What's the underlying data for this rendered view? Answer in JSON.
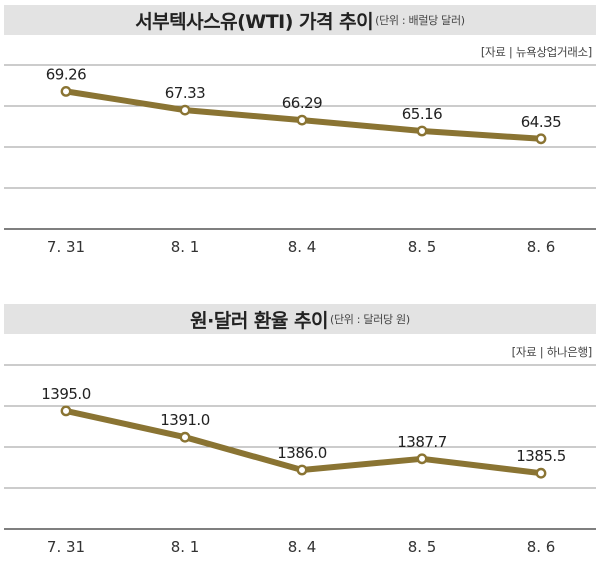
{
  "chart_data": [
    {
      "type": "line",
      "title": "서부텍사스유(WTI) 가격 추이",
      "unit_note": "(단위 : 배럴당 달러)",
      "source": "[자료 | 뉴욕상업거래소]",
      "categories": [
        "7. 31",
        "8. 1",
        "8. 4",
        "8. 5",
        "8. 6"
      ],
      "values": [
        69.26,
        67.33,
        66.29,
        65.16,
        64.35
      ],
      "value_labels": [
        "69.26",
        "67.33",
        "66.29",
        "65.16",
        "64.35"
      ],
      "ylim": [
        55,
        72
      ],
      "grid": true,
      "line_color": "#8a7433",
      "marker_fill": "#ffffff"
    },
    {
      "type": "line",
      "title": "원·달러 환율 추이",
      "unit_note": "(단위 : 달러당 원)",
      "source": "[자료 | 하나은행]",
      "categories": [
        "7. 31",
        "8. 1",
        "8. 4",
        "8. 5",
        "8. 6"
      ],
      "values": [
        1395.0,
        1391.0,
        1386.0,
        1387.7,
        1385.5
      ],
      "value_labels": [
        "1395.0",
        "1391.0",
        "1386.0",
        "1387.7",
        "1385.5"
      ],
      "ylim": [
        1377,
        1402
      ],
      "grid": true,
      "line_color": "#8a7433",
      "marker_fill": "#ffffff"
    }
  ]
}
